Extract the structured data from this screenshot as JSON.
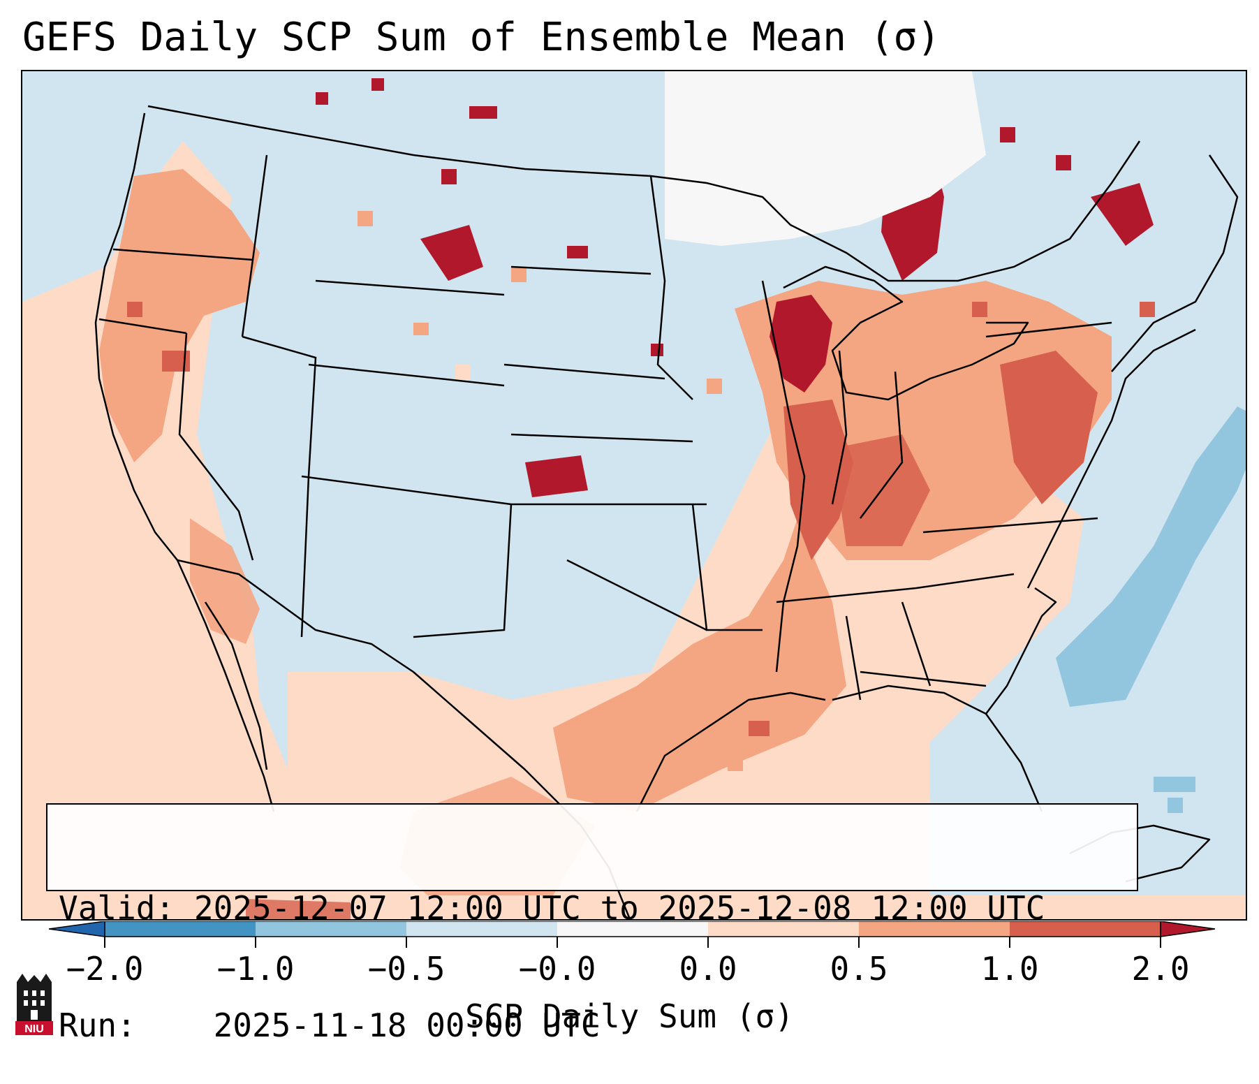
{
  "title": "GEFS Daily SCP Sum of Ensemble Mean (σ)",
  "info": {
    "valid_label": "Valid:",
    "valid_value": "2025-12-07 12:00 UTC to 2025-12-08 12:00 UTC",
    "run_label": "Run:",
    "run_value": "2025-11-18 00:00 UTC"
  },
  "colorbar": {
    "label": "SCP Daily Sum (σ)",
    "tick_labels": [
      "−2.0",
      "−1.0",
      "−0.5",
      "−0.0",
      "0.0",
      "0.5",
      "1.0",
      "2.0"
    ],
    "bins": [
      {
        "range": "<-2.0",
        "color": "#2166ac"
      },
      {
        "range": "-2.0 to -1.0",
        "color": "#4393c3"
      },
      {
        "range": "-1.0 to -0.5",
        "color": "#92c5de"
      },
      {
        "range": "-0.5 to -0.0",
        "color": "#d1e5f0"
      },
      {
        "range": "-0.0 to 0.0",
        "color": "#f7f7f7"
      },
      {
        "range": "0.0 to 0.5",
        "color": "#fddbc7"
      },
      {
        "range": "0.5 to 1.0",
        "color": "#f4a582"
      },
      {
        "range": "1.0 to 2.0",
        "color": "#d6604d"
      },
      {
        "range": ">2.0",
        "color": "#b2182b"
      }
    ]
  },
  "logo": {
    "icon": "niu-tower-icon",
    "text": "NIU"
  },
  "map": {
    "background_color": "#d1e5f0",
    "regions": [
      {
        "name": "Pacific coast",
        "category": "0.5 to 1.0"
      },
      {
        "name": "Upper Midwest / Great Lakes",
        "category": ">2.0"
      },
      {
        "name": "Mid-Mississippi valley",
        "category": "1.0 to 2.0"
      },
      {
        "name": "Mid-Atlantic",
        "category": "1.0 to 2.0"
      },
      {
        "name": "Gulf of Mexico",
        "category": "0.0 to 0.5"
      },
      {
        "name": "Western Atlantic",
        "category": "-1.0 to -0.5"
      },
      {
        "name": "Central Canada",
        "category": "-0.0 to 0.0"
      }
    ]
  }
}
